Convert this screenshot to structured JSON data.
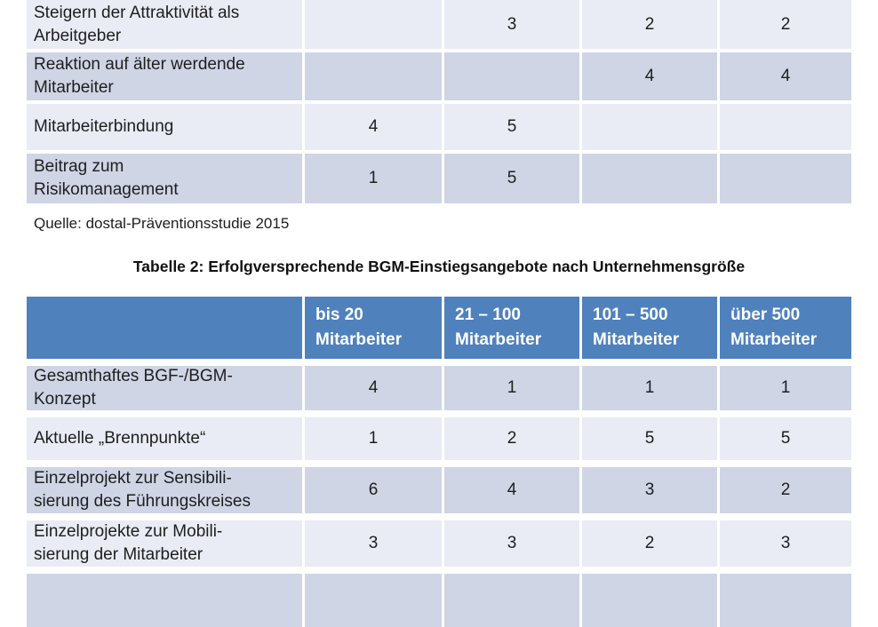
{
  "colors": {
    "header_blue": "#4F81BD",
    "band_dark": "#CFD5E5",
    "band_light": "#E9ECF4",
    "header_text": "#FFFFFF",
    "body_text": "#1E1E1E"
  },
  "source_note": "Quelle: dostal-Präventionsstudie 2015",
  "table1_partial": {
    "rows": [
      {
        "label": "Steigern der Attraktivität als\nArbeitgeber",
        "band": "light",
        "values": [
          "",
          "3",
          "2",
          "2"
        ]
      },
      {
        "label": "Reaktion auf älter werdende\nMitarbeiter",
        "band": "dark",
        "values": [
          "",
          "",
          "4",
          "4"
        ]
      },
      {
        "label": "Mitarbeiterbindung",
        "band": "light",
        "values": [
          "4",
          "5",
          "",
          ""
        ]
      },
      {
        "label": "Beitrag zum\nRisikomanagement",
        "band": "dark",
        "values": [
          "1",
          "5",
          "",
          ""
        ]
      }
    ]
  },
  "table2": {
    "title": "Tabelle 2: Erfolgversprechende BGM-Einstiegsangebote nach Unternehmensgröße",
    "column_headers": [
      "bis 20\nMitarbeiter",
      "21 – 100\nMitarbeiter",
      "101 – 500\nMitarbeiter",
      "über 500\nMitarbeiter"
    ],
    "rows": [
      {
        "label": "Gesamthaftes BGF-/BGM-\nKonzept",
        "band": "dark",
        "values": [
          "4",
          "1",
          "1",
          "1"
        ]
      },
      {
        "label": "Aktuelle „Brennpunkte“",
        "band": "light",
        "values": [
          "1",
          "2",
          "5",
          "5"
        ]
      },
      {
        "label": "Einzelprojekt zur Sensibili-\nsierung des Führungskreises",
        "band": "dark",
        "values": [
          "6",
          "4",
          "3",
          "2"
        ]
      },
      {
        "label": "Einzelprojekte zur Mobili-\nsierung der Mitarbeiter",
        "band": "light",
        "values": [
          "3",
          "3",
          "2",
          "3"
        ]
      },
      {
        "label": "",
        "band": "dark",
        "values": [
          "",
          "",
          "",
          ""
        ]
      }
    ]
  }
}
